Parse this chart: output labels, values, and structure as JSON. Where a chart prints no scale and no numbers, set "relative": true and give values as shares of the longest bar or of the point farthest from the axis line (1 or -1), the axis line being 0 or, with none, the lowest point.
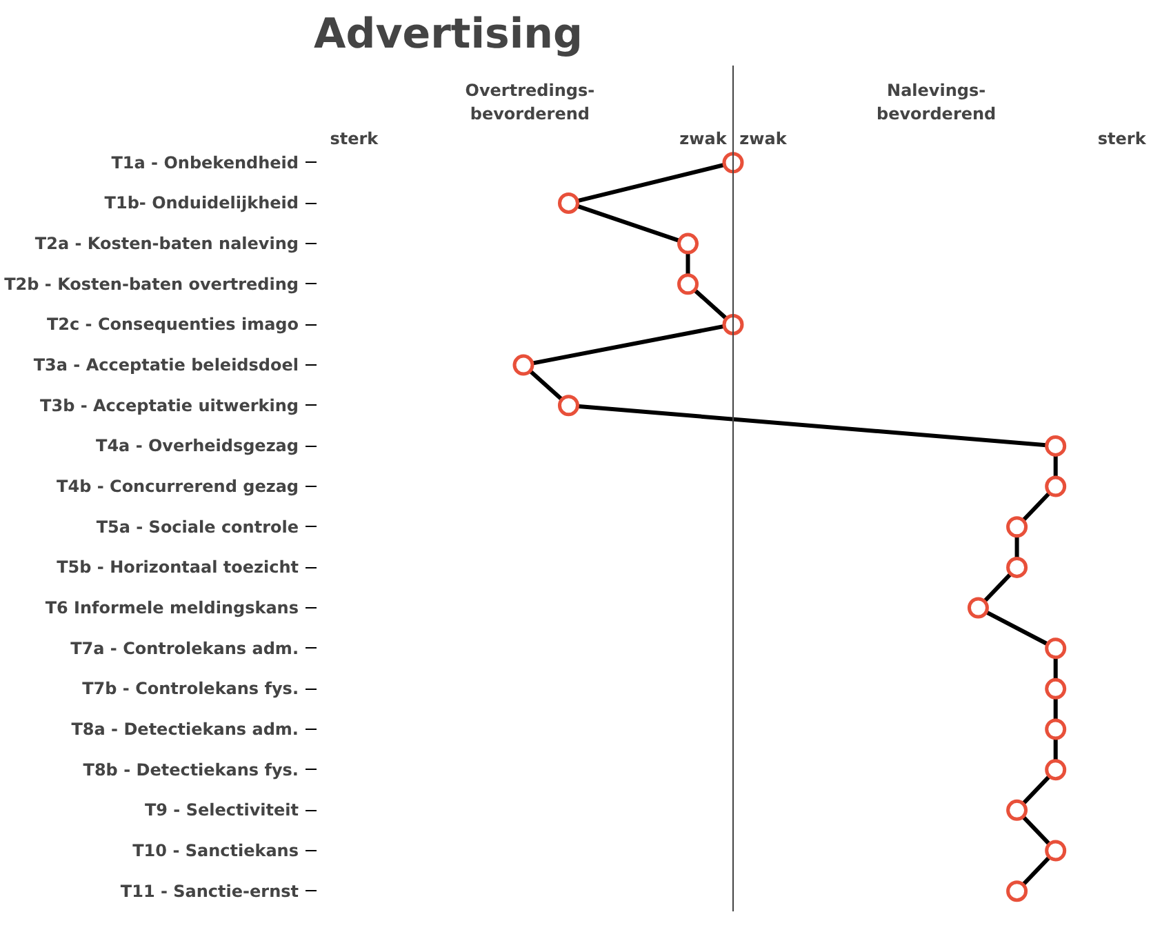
{
  "chart_data": {
    "type": "line",
    "title": "Advertising",
    "orientation": "horizontal",
    "relative": true,
    "marker": "circle",
    "line_style": "solid",
    "grid": false,
    "categories": [
      "T1a - Onbekendheid",
      "T1b- Onduidelijkheid",
      "T2a - Kosten-baten naleving",
      "T2b - Kosten-baten overtreding",
      "T2c - Consequenties imago",
      "T3a - Acceptatie beleidsdoel",
      "T3b - Acceptatie uitwerking",
      "T4a - Overheidsgezag",
      "T4b - Concurrerend gezag",
      "T5a - Sociale controle",
      "T5b - Horizontaal toezicht",
      "T6 Informele meldingskans",
      "T7a - Controlekans adm.",
      "T7b - Controlekans fys.",
      "T8a - Detectiekans adm.",
      "T8b - Detectiekans fys.",
      "T9 - Selectiviteit",
      "T10 - Sanctiekans",
      "T11 - Sanctie-ernst"
    ],
    "series": [
      {
        "color": "#000000",
        "values": [
          0,
          -0.51,
          -0.14,
          -0.14,
          0,
          -0.65,
          -0.51,
          1,
          1,
          0.88,
          0.88,
          0.76,
          1,
          1,
          1,
          1,
          0.88,
          1,
          0.88
        ]
      }
    ],
    "annotations": [
      "Overtredings-\nbevorderend",
      "sterk",
      "zwak",
      "Nalevings-\nbevorderend",
      "zwak",
      "sterk"
    ]
  }
}
